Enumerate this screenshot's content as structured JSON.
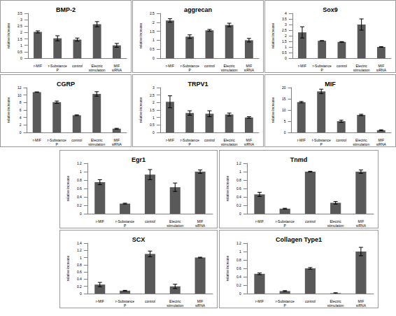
{
  "chart_data": [
    {
      "type": "bar",
      "title": "BMP-2",
      "y_label": "relative increase",
      "categories": [
        "r-MIF",
        "r-Substance P",
        "control",
        "Electric stimulation",
        "MIF siRNA"
      ],
      "values": [
        2.05,
        1.55,
        1.45,
        2.65,
        1.0
      ],
      "errors": [
        0.08,
        0.2,
        0.12,
        0.2,
        0.15
      ],
      "color": "#595959",
      "ylim": [
        0,
        3.5
      ],
      "yticks": [
        0,
        0.5,
        1,
        1.5,
        2,
        2.5,
        3,
        3.5
      ],
      "grid": false
    },
    {
      "type": "bar",
      "title": "aggrecan",
      "y_label": "relative increase",
      "categories": [
        "r-MIF",
        "r-Substance P",
        "control",
        "Electric stimulation",
        "MIF siRNA"
      ],
      "values": [
        2.1,
        1.2,
        1.55,
        1.85,
        1.0
      ],
      "errors": [
        0.1,
        0.1,
        0.05,
        0.1,
        0.1
      ],
      "color": "#595959",
      "ylim": [
        0,
        2.5
      ],
      "yticks": [
        0,
        0.5,
        1,
        1.5,
        2,
        2.5
      ],
      "grid": false
    },
    {
      "type": "bar",
      "title": "Sox9",
      "y_label": "relative increase",
      "categories": [
        "r-MIF",
        "r-Substance P",
        "control",
        "Electric stimulation",
        "MIF siRNA"
      ],
      "values": [
        2.3,
        1.55,
        1.45,
        3.0,
        1.0
      ],
      "errors": [
        0.5,
        0.02,
        0.03,
        0.5,
        0.02
      ],
      "color": "#595959",
      "ylim": [
        0,
        4
      ],
      "yticks": [
        0,
        0.5,
        1,
        1.5,
        2,
        2.5,
        3,
        3.5,
        4
      ],
      "grid": false
    },
    {
      "type": "bar",
      "title": "CGRP",
      "y_label": "relative increase",
      "categories": [
        "r-MIF",
        "r-Substance P",
        "control",
        "Electric stimulation",
        "MIF siRNA"
      ],
      "values": [
        10.8,
        8.1,
        4.6,
        10.3,
        1.0
      ],
      "errors": [
        0.05,
        0.3,
        0.1,
        0.6,
        0.1
      ],
      "color": "#595959",
      "ylim": [
        0,
        12
      ],
      "yticks": [
        0,
        2,
        4,
        6,
        8,
        10,
        12
      ],
      "grid": false
    },
    {
      "type": "bar",
      "title": "TRPV1",
      "y_label": "relative increase",
      "categories": [
        "r-MIF",
        "r-Substance P",
        "control",
        "Electric stimulation",
        "MIF siRNA"
      ],
      "values": [
        2.05,
        1.3,
        1.25,
        1.2,
        1.0
      ],
      "errors": [
        0.4,
        0.15,
        0.2,
        0.1,
        0.05
      ],
      "color": "#595959",
      "ylim": [
        0,
        3
      ],
      "yticks": [
        0,
        0.5,
        1,
        1.5,
        2,
        2.5,
        3
      ],
      "grid": false
    },
    {
      "type": "bar",
      "title": "MIF",
      "y_label": "relative increase",
      "categories": [
        "r-MIF",
        "r-Substance P",
        "control",
        "Electric stimulation",
        "MIF siRNA"
      ],
      "values": [
        13.5,
        18.3,
        5.0,
        7.8,
        1.0
      ],
      "errors": [
        0.3,
        1.0,
        0.5,
        0.3,
        0.2
      ],
      "color": "#595959",
      "ylim": [
        0,
        20
      ],
      "yticks": [
        0,
        5,
        10,
        15,
        20
      ],
      "grid": false
    },
    {
      "type": "bar",
      "title": "Egr1",
      "y_label": "relative increase",
      "categories": [
        "r-MIF",
        "r-Substance P",
        "control",
        "Electric stimulation",
        "MIF siRNA"
      ],
      "values": [
        0.75,
        0.24,
        0.93,
        0.63,
        1.0
      ],
      "errors": [
        0.06,
        0.01,
        0.12,
        0.1,
        0.04
      ],
      "color": "#595959",
      "ylim": [
        0,
        1.2
      ],
      "yticks": [
        0,
        0.2,
        0.4,
        0.6,
        0.8,
        1,
        1.2
      ],
      "grid": false
    },
    {
      "type": "bar",
      "title": "Tnmd",
      "y_label": "relative increase",
      "categories": [
        "r-MIF",
        "r-Substance P",
        "control",
        "Electric stimulation",
        "MIF siRNA"
      ],
      "values": [
        0.46,
        0.12,
        1.0,
        0.26,
        1.0
      ],
      "errors": [
        0.05,
        0.01,
        0.01,
        0.03,
        0.04
      ],
      "color": "#595959",
      "ylim": [
        0,
        1.2
      ],
      "yticks": [
        0,
        0.2,
        0.4,
        0.6,
        0.8,
        1,
        1.2
      ],
      "grid": false
    },
    {
      "type": "bar",
      "title": "SCX",
      "y_label": "relative increase",
      "categories": [
        "r-MIF",
        "r-Substance P",
        "control",
        "Electric stimulation",
        "MIF siRNA"
      ],
      "values": [
        0.25,
        0.08,
        1.1,
        0.2,
        1.0
      ],
      "errors": [
        0.06,
        0.01,
        0.08,
        0.06,
        0.01
      ],
      "color": "#595959",
      "ylim": [
        0,
        1.4
      ],
      "yticks": [
        0,
        0.2,
        0.4,
        0.6,
        0.8,
        1,
        1.2,
        1.4
      ],
      "grid": false
    },
    {
      "type": "bar",
      "title": "Collagen Type1",
      "y_label": "relative increase",
      "categories": [
        "r-MIF",
        "r-Substance P",
        "control",
        "Electric stimulation",
        "MIF siRNA"
      ],
      "values": [
        0.47,
        0.06,
        0.6,
        0.01,
        1.0
      ],
      "errors": [
        0.02,
        0.01,
        0.02,
        0.01,
        0.1
      ],
      "color": "#595959",
      "ylim": [
        0,
        1.2
      ],
      "yticks": [
        0,
        0.2,
        0.4,
        0.6,
        0.8,
        1,
        1.2
      ],
      "grid": false
    }
  ]
}
